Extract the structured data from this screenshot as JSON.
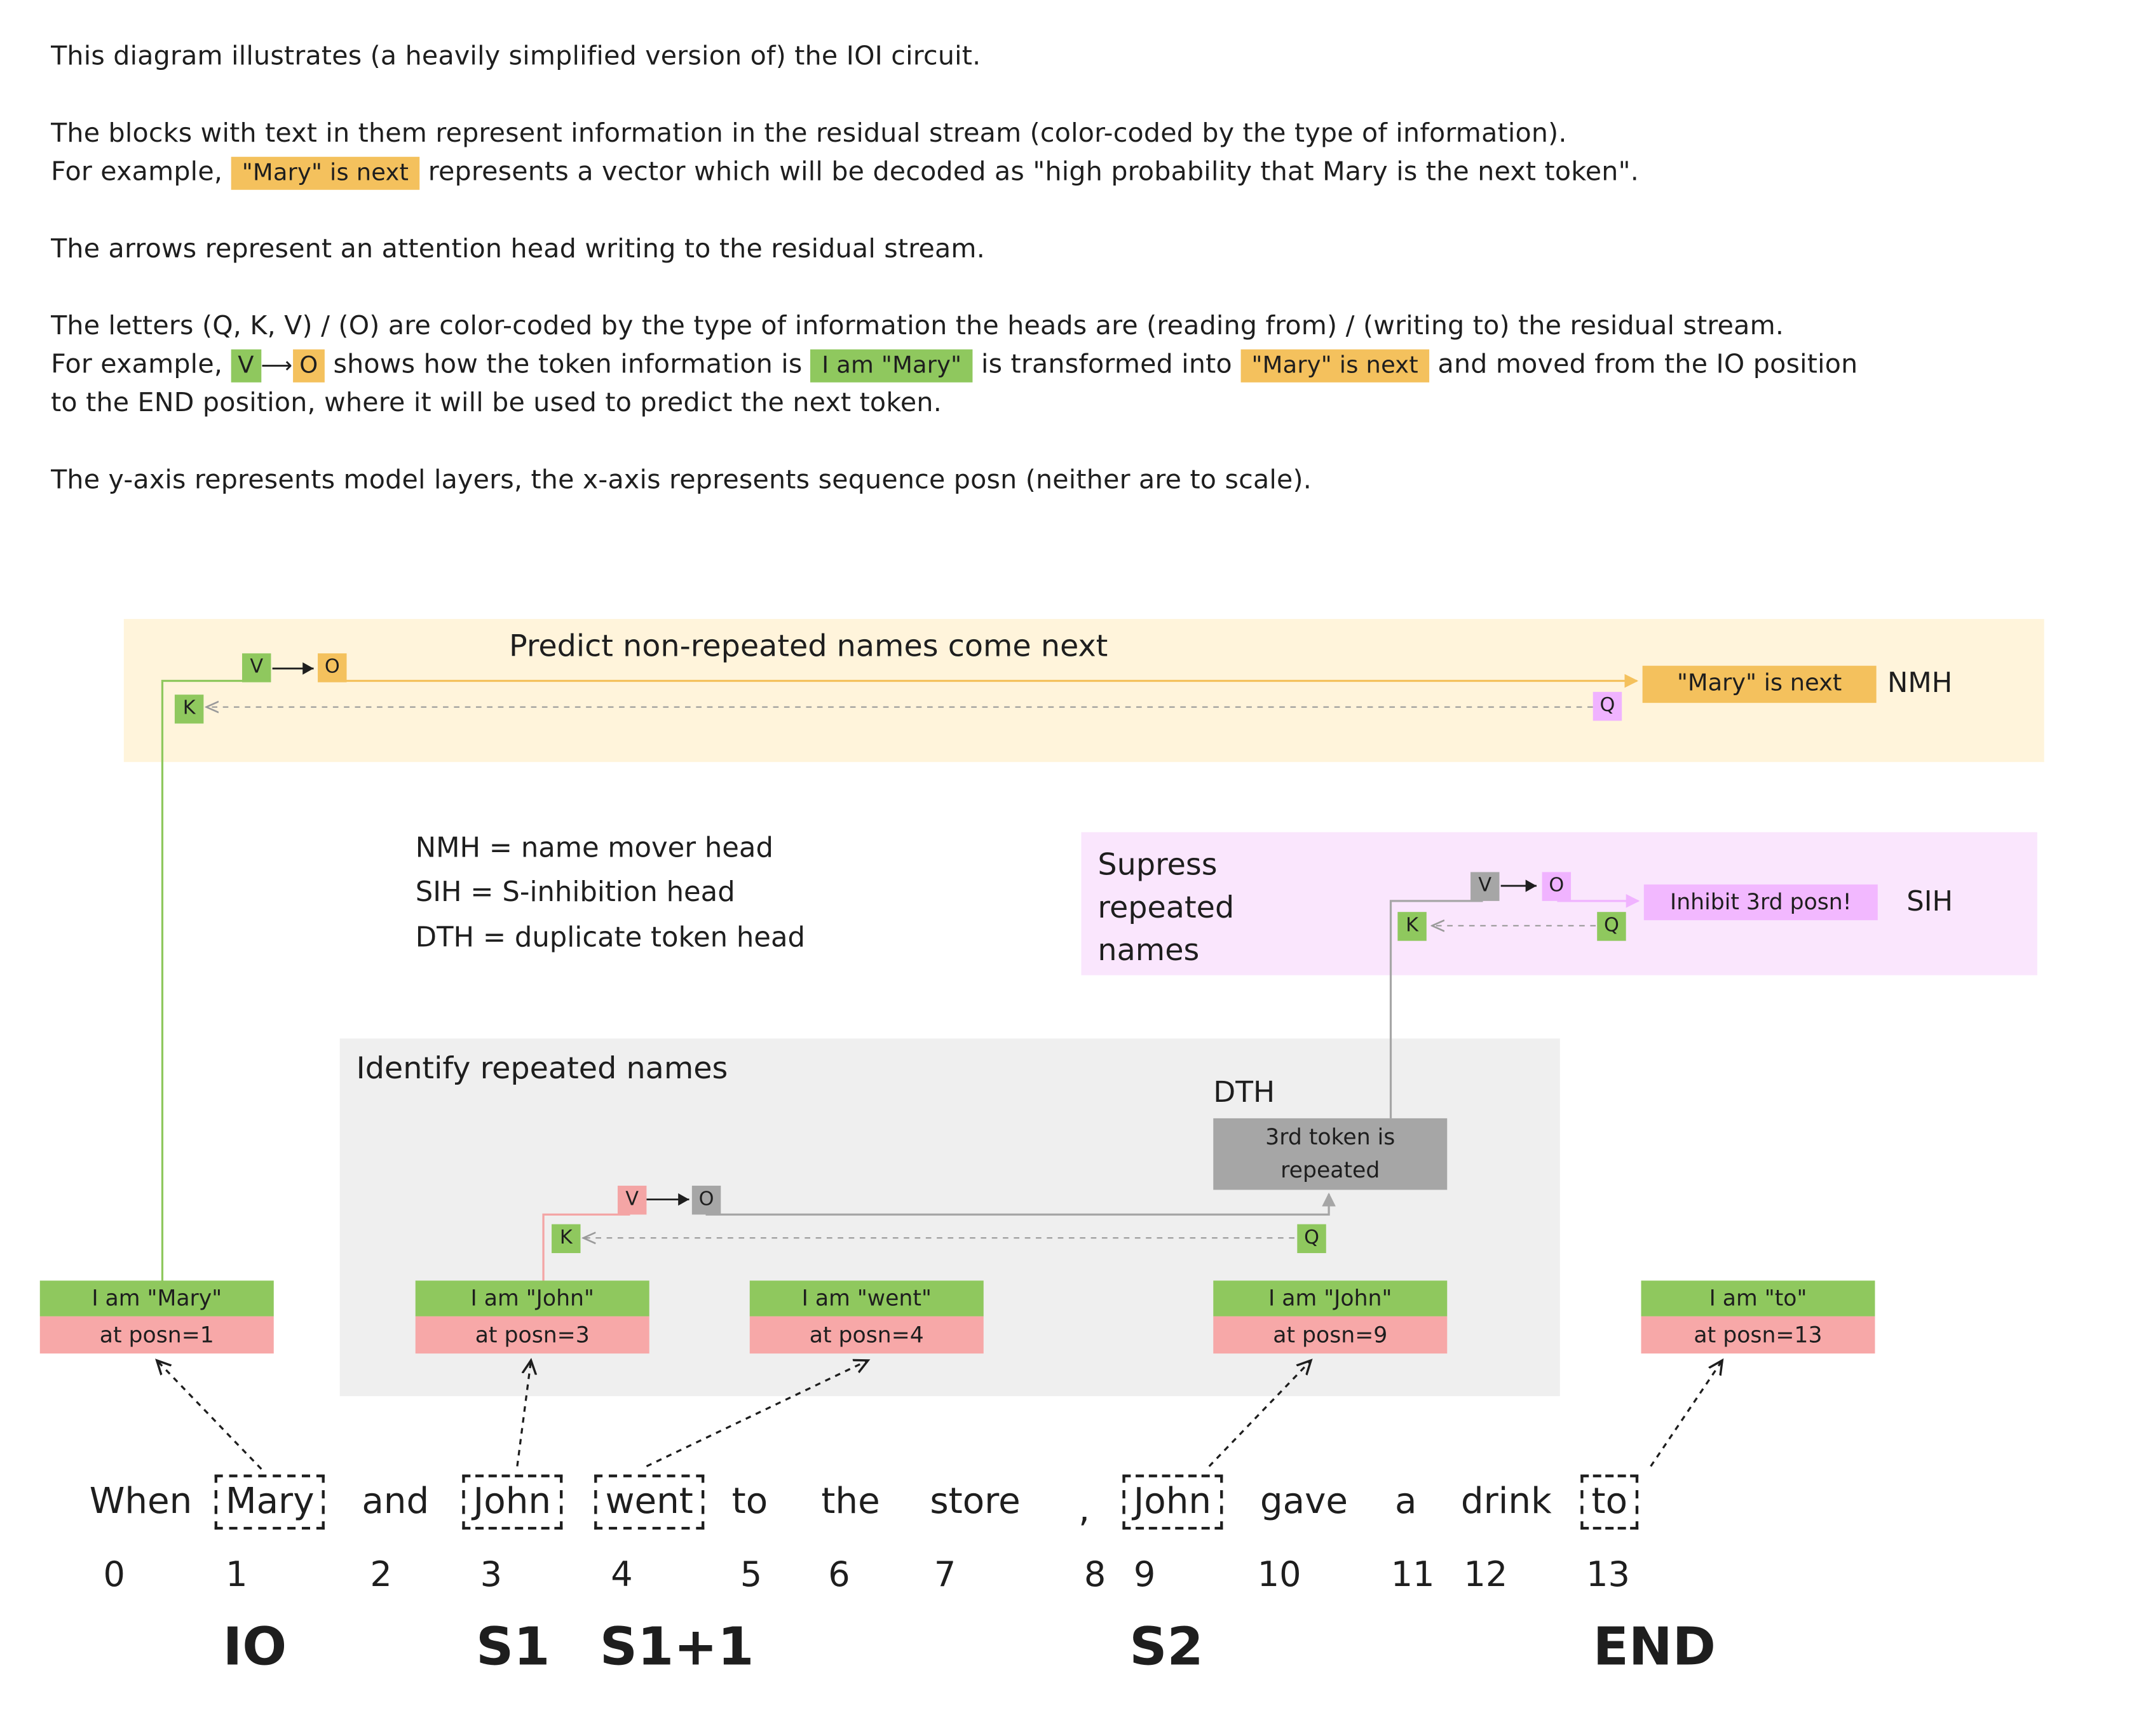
{
  "intro": {
    "line1": "This diagram illustrates (a heavily simplified version of) the IOI circuit.",
    "line2": "The blocks with text in them represent information in the residual stream (color-coded by the type of information).",
    "line3_a": "For example,",
    "line3_chip": "\"Mary\" is next",
    "line3_b": "represents a vector which will be decoded as \"high probability that Mary is the next token\".",
    "line4": "The arrows represent an attention head writing to the residual stream.",
    "line5": "The letters (Q, K, V) / (O) are color-coded by the type of information the heads are (reading from) / (writing to) the residual stream.",
    "line6_a": "For example,",
    "line6_v": "V",
    "line6_o": "O",
    "line6_b": "shows how the token information is",
    "line6_chip1": "I am \"Mary\"",
    "line6_c": "is transformed into",
    "line6_chip2": "\"Mary\" is next",
    "line6_d": "and moved from the IO position",
    "line7": "to the END position, where it will be used to predict the next token.",
    "line8": "The y-axis represents model layers, the x-axis represents sequence posn (neither are to scale)."
  },
  "nmh": {
    "title": "Predict non-repeated names come next",
    "v": "V",
    "o": "O",
    "k": "K",
    "q": "Q",
    "output": "\"Mary\" is next",
    "label": "NMH"
  },
  "legend": {
    "nmh": "NMH = name mover head",
    "sih": "SIH = S-inhibition head",
    "dth": "DTH = duplicate token head"
  },
  "sih": {
    "title_1": "Supress",
    "title_2": "repeated",
    "title_3": "names",
    "v": "V",
    "o": "O",
    "k": "K",
    "q": "Q",
    "output": "Inhibit 3rd posn!",
    "label": "SIH"
  },
  "dth": {
    "title": "Identify repeated names",
    "label": "DTH",
    "box_1": "3rd token is",
    "box_2": "repeated",
    "v": "V",
    "o": "O",
    "k": "K",
    "q": "Q"
  },
  "blocks": [
    {
      "top": "I am \"Mary\"",
      "bottom": "at posn=1"
    },
    {
      "top": "I am \"John\"",
      "bottom": "at posn=3"
    },
    {
      "top": "I am \"went\"",
      "bottom": "at posn=4"
    },
    {
      "top": "I am \"John\"",
      "bottom": "at posn=9"
    },
    {
      "top": "I am \"to\"",
      "bottom": "at posn=13"
    }
  ],
  "sentence": [
    "When",
    "Mary",
    "and",
    "John",
    "went",
    "to",
    "the",
    "store",
    ",",
    "John",
    "gave",
    "a",
    "drink",
    "to"
  ],
  "indices": [
    "0",
    "1",
    "2",
    "3",
    "4",
    "5",
    "6",
    "7",
    "8",
    "9",
    "10",
    "11",
    "12",
    "13"
  ],
  "roles": {
    "io": "IO",
    "s1": "S1",
    "s1p1": "S1+1",
    "s2": "S2",
    "end": "END"
  },
  "colors": {
    "green": "#8fc85e",
    "yellow": "#f4c15d",
    "pink": "#f0b3ff",
    "red": "#f7a8a8",
    "gray": "#a6a6a6",
    "nmh_bg": "#fff4db",
    "sih_bg": "#fae6fd",
    "dth_bg": "#efefef"
  }
}
